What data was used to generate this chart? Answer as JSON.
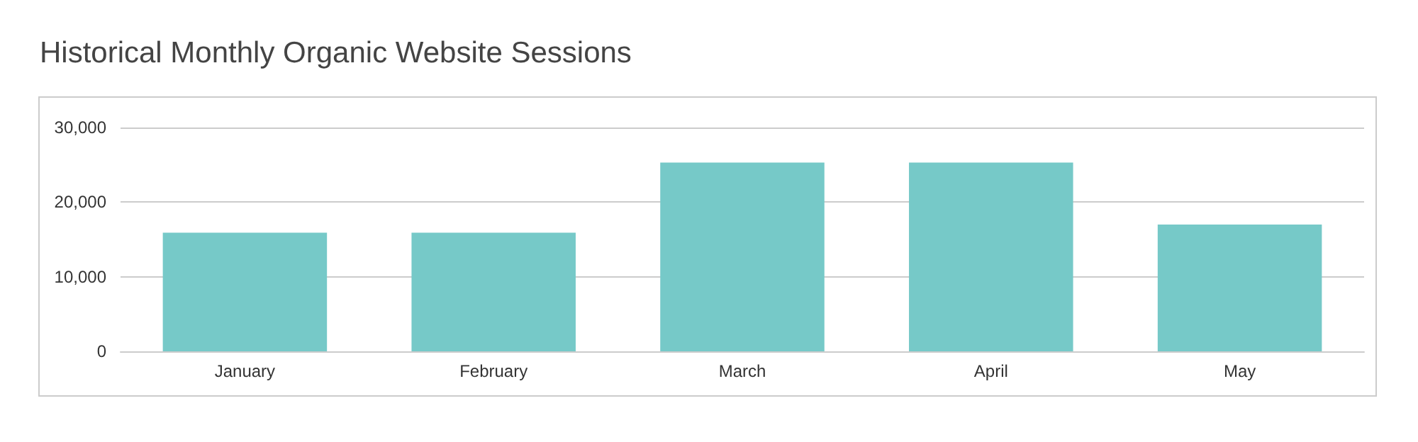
{
  "chart_data": {
    "type": "bar",
    "title": "Historical Monthly Organic Website Sessions",
    "categories": [
      "January",
      "February",
      "March",
      "April",
      "May"
    ],
    "series": [
      {
        "color": "#76c9c8",
        "values": [
          15900,
          15900,
          25300,
          25300,
          17000
        ]
      }
    ],
    "ylim": [
      0,
      30000
    ],
    "yticks": [
      0,
      {
        "value": 10000,
        "label": "10,000"
      },
      {
        "value": 20000,
        "label": "20,000"
      },
      {
        "value": 30000,
        "label": "30,000"
      }
    ],
    "grid": "y"
  }
}
